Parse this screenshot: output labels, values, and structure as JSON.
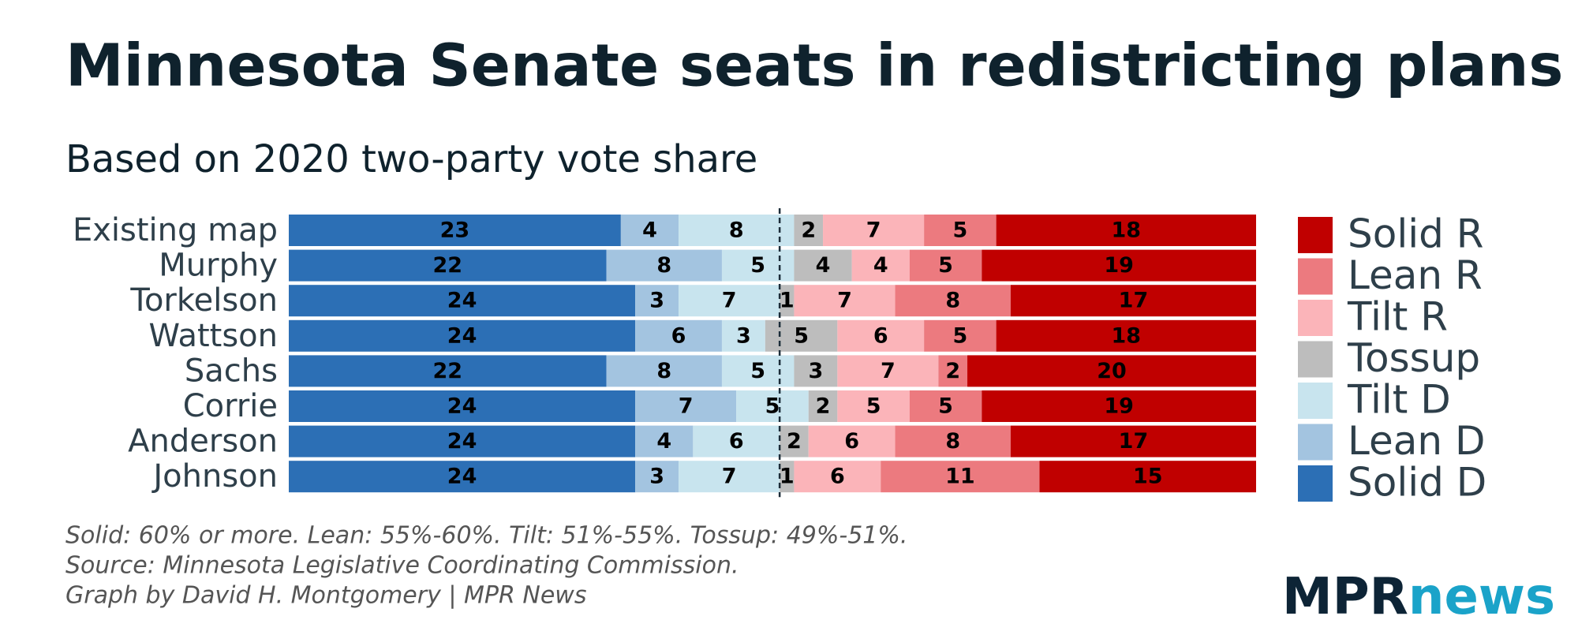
{
  "chart_data": {
    "type": "stacked-bar-horizontal",
    "title": "Minnesota Senate seats in redistricting plans",
    "subtitle": "Based on 2020 two-party vote share",
    "categories": [
      "Existing map",
      "Murphy",
      "Torkelson",
      "Wattson",
      "Sachs",
      "Corrie",
      "Anderson",
      "Johnson"
    ],
    "series": [
      {
        "name": "Solid D",
        "color": "#2c6fb5",
        "values": [
          23,
          22,
          24,
          24,
          22,
          24,
          24,
          24
        ]
      },
      {
        "name": "Lean D",
        "color": "#a3c4e0",
        "values": [
          4,
          8,
          3,
          6,
          8,
          7,
          4,
          3
        ]
      },
      {
        "name": "Tilt D",
        "color": "#c8e4ee",
        "values": [
          8,
          5,
          7,
          3,
          5,
          5,
          6,
          7
        ]
      },
      {
        "name": "Tossup",
        "color": "#bdbdbd",
        "values": [
          2,
          4,
          1,
          5,
          3,
          2,
          2,
          1
        ]
      },
      {
        "name": "Tilt R",
        "color": "#fbb4b9",
        "values": [
          7,
          4,
          7,
          6,
          7,
          5,
          6,
          6
        ]
      },
      {
        "name": "Lean R",
        "color": "#ec7a7f",
        "values": [
          5,
          5,
          8,
          5,
          2,
          5,
          8,
          11
        ]
      },
      {
        "name": "Solid R",
        "color": "#c00000",
        "values": [
          18,
          19,
          17,
          18,
          20,
          19,
          17,
          15
        ]
      }
    ],
    "xlim": [
      0,
      67
    ],
    "majority_line": 34,
    "notes": [
      "Solid: 60% or more. Lean: 55%-60%. Tilt: 51%-55%. Tossup: 49%-51%.",
      "Source: Minnesota Legislative Coordinating Commission.",
      "Graph by David H. Montgomery | MPR News"
    ],
    "logo": [
      "MPR",
      "news"
    ]
  }
}
